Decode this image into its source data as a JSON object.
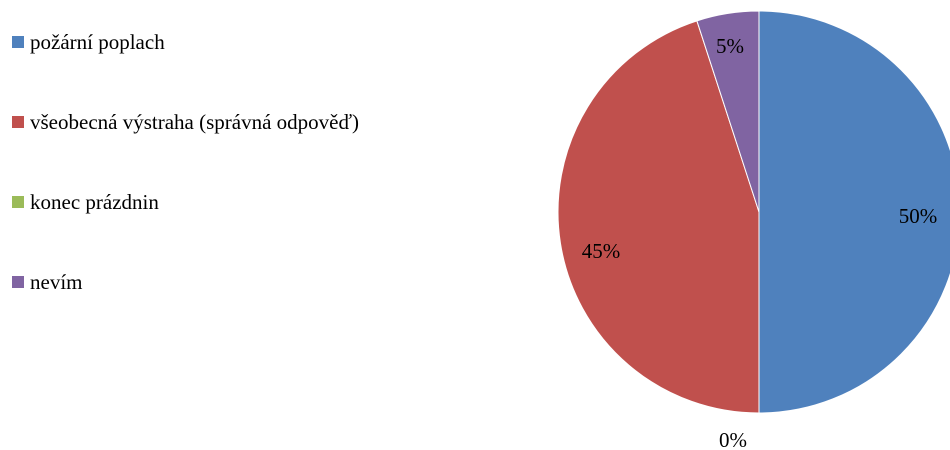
{
  "chart_data": {
    "type": "pie",
    "title": "",
    "categories": [
      "požární poplach",
      "všeobecná výstraha (správná odpověď)",
      "konec prázdnin",
      "nevím"
    ],
    "values": [
      50,
      45,
      0,
      5
    ],
    "data_labels": [
      "50%",
      "45%",
      "0%",
      "5%"
    ],
    "colors": [
      "#4F81BD",
      "#C0504D",
      "#9BBB59",
      "#8064A2"
    ],
    "legend_position": "left"
  }
}
